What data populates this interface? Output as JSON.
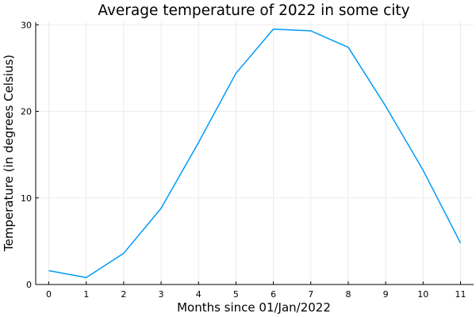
{
  "chart_data": {
    "type": "line",
    "title": "Average temperature of 2022 in some city",
    "xlabel": "Months since 01/Jan/2022",
    "ylabel": "Temperature (in degrees Celsius)",
    "x": [
      0,
      1,
      2,
      3,
      4,
      5,
      6,
      7,
      8,
      9,
      10,
      11
    ],
    "series": [
      {
        "values": [
          1.6,
          0.8,
          3.6,
          8.8,
          16.4,
          24.4,
          29.5,
          29.3,
          27.4,
          20.6,
          13.2,
          4.8
        ]
      }
    ],
    "xlim": [
      -0.35,
      11.35
    ],
    "ylim": [
      0,
      30.3
    ],
    "xticks": [
      0,
      1,
      2,
      3,
      4,
      5,
      6,
      7,
      8,
      9,
      10,
      11
    ],
    "yticks": [
      0,
      10,
      20,
      30
    ],
    "grid": true,
    "legend": "none",
    "colors": {
      "series": "#009AFA",
      "grid": "#e6e6e6"
    }
  }
}
